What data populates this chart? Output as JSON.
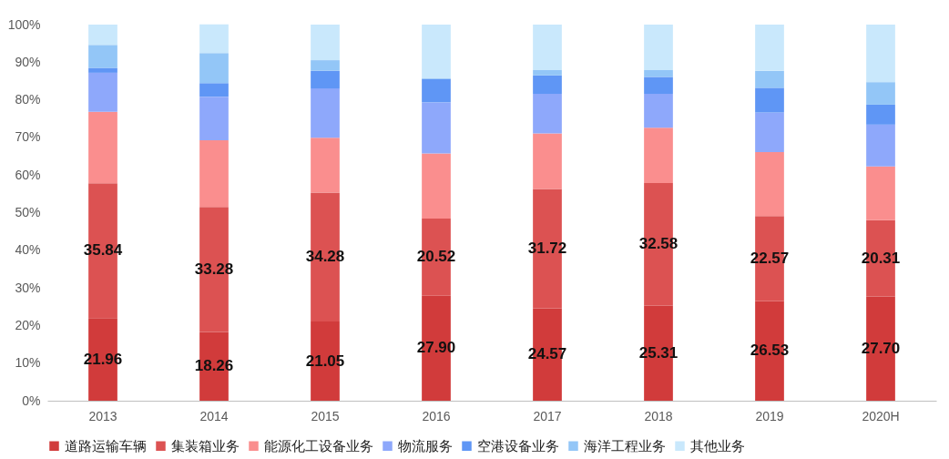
{
  "chart_data": {
    "type": "bar",
    "stacked": true,
    "categories": [
      "2013",
      "2014",
      "2015",
      "2016",
      "2017",
      "2018",
      "2019",
      "2020H"
    ],
    "series": [
      {
        "name": "道路运输车辆",
        "color": "#d13b3b",
        "values": [
          21.96,
          18.26,
          21.05,
          27.9,
          24.57,
          25.31,
          26.53,
          27.7
        ],
        "value_labels": [
          "21.96",
          "18.26",
          "21.05",
          "27.90",
          "24.57",
          "25.31",
          "26.53",
          "27.70"
        ]
      },
      {
        "name": "集装箱业务",
        "color": "#dc5252",
        "values": [
          35.84,
          33.28,
          34.28,
          20.52,
          31.72,
          32.58,
          22.57,
          20.31
        ],
        "value_labels": [
          "35.84",
          "33.28",
          "34.28",
          "20.52",
          "31.72",
          "32.58",
          "22.57",
          "20.31"
        ]
      },
      {
        "name": "能源化工设备业务",
        "color": "#fa8e8e",
        "values": [
          19.0,
          17.7,
          14.6,
          17.3,
          14.8,
          14.7,
          17.0,
          14.3
        ]
      },
      {
        "name": "物流服务",
        "color": "#8ea8fb",
        "values": [
          10.4,
          11.6,
          13.1,
          13.6,
          10.5,
          9.0,
          10.5,
          11.1
        ]
      },
      {
        "name": "空港设备业务",
        "color": "#5f96f5",
        "values": [
          1.3,
          3.6,
          4.7,
          6.2,
          4.9,
          4.5,
          6.6,
          5.3
        ]
      },
      {
        "name": "海洋工程业务",
        "color": "#93c6f7",
        "values": [
          6.1,
          8.0,
          2.8,
          0.3,
          1.4,
          1.8,
          4.5,
          6.0
        ]
      },
      {
        "name": "其他业务",
        "color": "#c9e8fc",
        "values": [
          5.4,
          7.6,
          9.5,
          14.2,
          12.1,
          12.1,
          12.3,
          15.3
        ]
      }
    ],
    "ylim": [
      0,
      100
    ],
    "yticks": [
      {
        "value": 0,
        "label": "0%"
      },
      {
        "value": 10,
        "label": "10%"
      },
      {
        "value": 20,
        "label": "20%"
      },
      {
        "value": 30,
        "label": "30%"
      },
      {
        "value": 40,
        "label": "40%"
      },
      {
        "value": 50,
        "label": "50%"
      },
      {
        "value": 60,
        "label": "60%"
      },
      {
        "value": 70,
        "label": "70%"
      },
      {
        "value": 80,
        "label": "80%"
      },
      {
        "value": 90,
        "label": "90%"
      },
      {
        "value": 100,
        "label": "100%"
      }
    ],
    "grid": false,
    "legend": "bottom"
  }
}
